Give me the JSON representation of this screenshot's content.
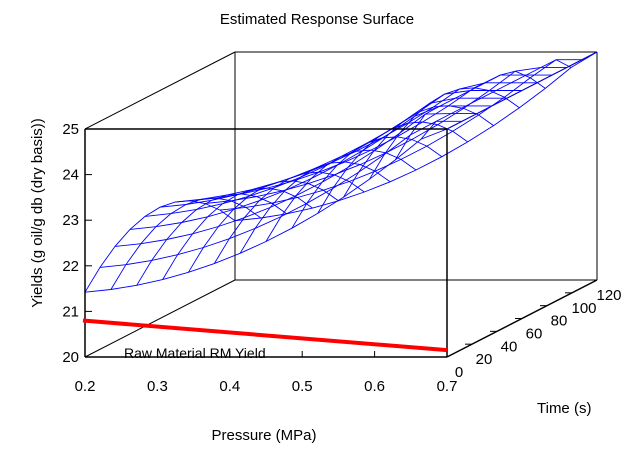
{
  "chart_data": {
    "type": "surface",
    "title": "Estimated Response Surface",
    "xlabel": "Pressure (MPa)",
    "ylabel": "Time (s)",
    "zlabel": "Yields (g oil/g db (dry basis))",
    "x_ticks": [
      "0.2",
      "0.3",
      "0.4",
      "0.5",
      "0.6",
      "0.7"
    ],
    "y_ticks": [
      "0",
      "20",
      "40",
      "60",
      "80",
      "100",
      "120"
    ],
    "z_ticks": [
      "20",
      "21",
      "22",
      "23",
      "24",
      "25"
    ],
    "xlim": [
      0.2,
      0.7
    ],
    "ylim": [
      0,
      120
    ],
    "zlim": [
      20,
      25
    ],
    "surface_model": {
      "description_free_coefficients": true,
      "terms": {
        "intercept": 21.7,
        "p": -4.0,
        "p2": 13.0,
        "t": 0.035,
        "t2": -0.0003,
        "pt": 0.0
      }
    },
    "reference_line": {
      "label": "Raw Material RM Yield",
      "z": 20.8,
      "color": "#ff0000"
    },
    "surface_color": "#0000ff"
  }
}
